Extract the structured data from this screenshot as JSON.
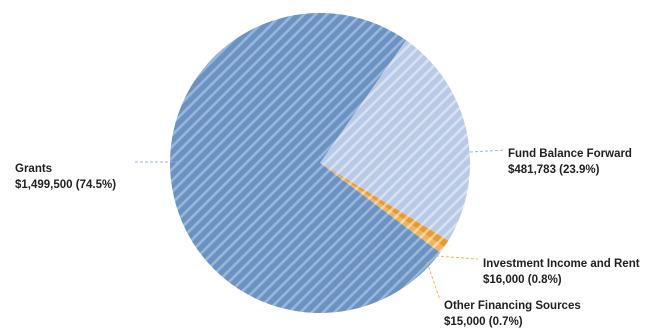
{
  "chart_data": {
    "type": "pie",
    "title": "",
    "slices": [
      {
        "name": "Fund Balance Forward",
        "value": 481783,
        "value_label": "$481,783 (23.9%)",
        "percent": 23.9,
        "color": "#b9cae6",
        "hatch_color": "#d7e1f1"
      },
      {
        "name": "Investment Income and Rent",
        "value": 16000,
        "value_label": "$16,000 (0.8%)",
        "percent": 0.8,
        "color": "#e89a32",
        "hatch_color": "#f6c987"
      },
      {
        "name": "Other Financing Sources",
        "value": 15000,
        "value_label": "$15,000 (0.7%)",
        "percent": 0.7,
        "color": "#f0b45e",
        "hatch_color": "#fbd9a8"
      },
      {
        "name": "Grants",
        "value": 1499500,
        "value_label": "$1,499,500 (74.5%)",
        "percent": 74.5,
        "color": "#6a93c3",
        "hatch_color": "#9ab6da"
      }
    ],
    "start_angle_deg": 35,
    "direction": "clockwise",
    "fill_pattern": "diagonal-stripes",
    "legend": "none",
    "labels": "outside-with-leader-lines",
    "leader_line_color": "#9ab6da"
  }
}
